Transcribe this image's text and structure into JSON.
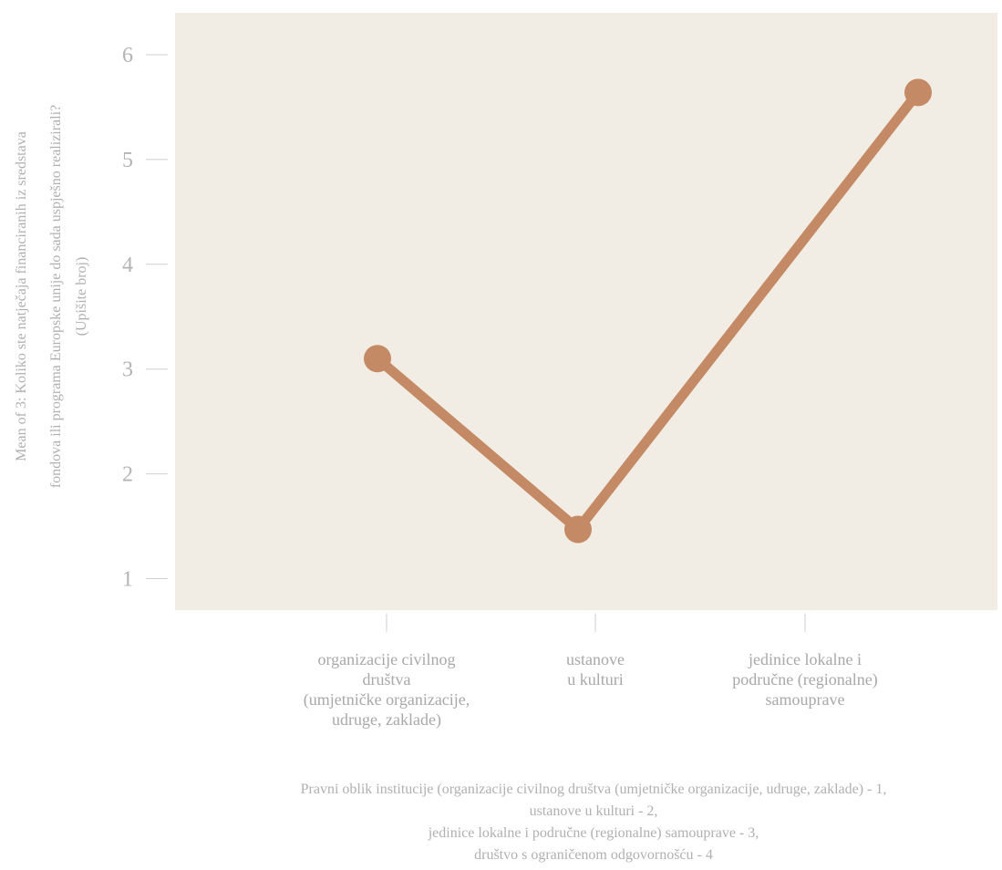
{
  "chart_data": {
    "type": "line",
    "categories": [
      "organizacije civilnog društva (umjetničke organizacije, udruge, zaklade)",
      "ustanove u kulturi",
      "jedinice lokalne i područne (regionalne) samouprave"
    ],
    "x_tick_labels": [
      [
        "organizacije civilnog",
        "društva",
        "(umjetničke organizacije,",
        "udruge, zaklade)"
      ],
      [
        "ustanove",
        "u kulturi"
      ],
      [
        "jedinice lokalne i",
        "područne (regionalne)",
        "samouprave"
      ]
    ],
    "x": [
      1,
      2,
      3
    ],
    "values": [
      3.1,
      1.47,
      5.64
    ],
    "ylim": [
      0.7,
      6.4
    ],
    "y_ticks": [
      1,
      2,
      3,
      4,
      5,
      6
    ],
    "ylabel_lines": [
      "Mean of 3: Koliko ste natječaja financiranih iz sredstava",
      "fondova ili programa Europske unije do sada uspješno realizirali?",
      "(Upišite broj)"
    ],
    "xlabel_lines": [
      "Pravni oblik institucije (organizacije civilnog društva (umjetničke organizacije, udruge, zaklade) - 1,",
      "ustanove u kulturi - 2,",
      "jedinice lokalne i područne (regionalne) samouprave - 3,",
      "društvo s ograničenom odgovornošću - 4"
    ],
    "grid": false,
    "colors": {
      "panel": "#f1ede4",
      "line": "#c48a65",
      "text": "#b0b0b0",
      "tick": "#cfcfcf"
    }
  }
}
